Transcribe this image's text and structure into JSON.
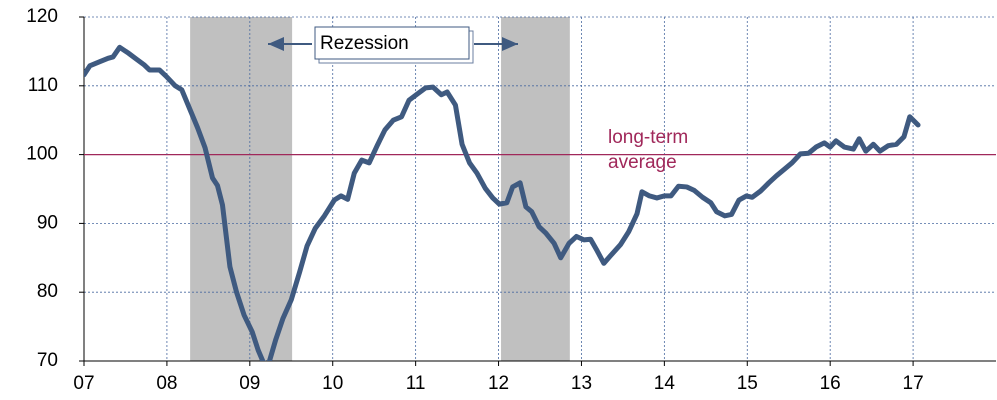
{
  "chart_data": {
    "type": "line",
    "x": [
      2007.0,
      2007.07,
      2007.19,
      2007.29,
      2007.35,
      2007.43,
      2007.53,
      2007.63,
      2007.73,
      2007.79,
      2007.91,
      2007.99,
      2008.1,
      2008.18,
      2008.28,
      2008.37,
      2008.46,
      2008.55,
      2008.61,
      2008.67,
      2008.76,
      2008.84,
      2008.93,
      2009.03,
      2009.1,
      2009.16,
      2009.22,
      2009.31,
      2009.4,
      2009.5,
      2009.6,
      2009.69,
      2009.79,
      2009.9,
      2010.02,
      2010.1,
      2010.18,
      2010.26,
      2010.35,
      2010.44,
      2010.54,
      2010.63,
      2010.73,
      2010.83,
      2010.92,
      2011.02,
      2011.12,
      2011.21,
      2011.31,
      2011.38,
      2011.48,
      2011.56,
      2011.65,
      2011.74,
      2011.84,
      2011.93,
      2012.01,
      2012.1,
      2012.17,
      2012.26,
      2012.33,
      2012.4,
      2012.49,
      2012.57,
      2012.67,
      2012.75,
      2012.85,
      2012.94,
      2013.03,
      2013.11,
      2013.19,
      2013.27,
      2013.35,
      2013.47,
      2013.57,
      2013.67,
      2013.73,
      2013.82,
      2013.91,
      2014.0,
      2014.08,
      2014.17,
      2014.27,
      2014.36,
      2014.46,
      2014.56,
      2014.63,
      2014.73,
      2014.81,
      2014.9,
      2014.99,
      2015.06,
      2015.16,
      2015.26,
      2015.35,
      2015.45,
      2015.54,
      2015.64,
      2015.74,
      2015.83,
      2015.93,
      2016.0,
      2016.07,
      2016.17,
      2016.28,
      2016.35,
      2016.43,
      2016.52,
      2016.6,
      2016.7,
      2016.8,
      2016.89,
      2016.96,
      2017.06
    ],
    "series": [
      {
        "color": "#3f5a80",
        "values": [
          111.6,
          112.9,
          113.5,
          114.0,
          114.2,
          115.6,
          114.8,
          113.9,
          113.0,
          112.3,
          112.3,
          111.4,
          110.0,
          109.4,
          106.5,
          103.9,
          101.0,
          96.6,
          95.5,
          92.7,
          83.7,
          80.0,
          76.7,
          74.2,
          71.6,
          69.9,
          69.3,
          73.0,
          76.2,
          78.9,
          82.9,
          86.7,
          89.3,
          91.1,
          93.4,
          94.0,
          93.5,
          97.3,
          99.2,
          98.8,
          101.4,
          103.6,
          105.0,
          105.5,
          107.9,
          108.8,
          109.7,
          109.8,
          108.7,
          109.1,
          107.2,
          101.5,
          98.8,
          97.3,
          95.1,
          93.7,
          92.8,
          93.0,
          95.3,
          95.9,
          92.4,
          91.7,
          89.5,
          88.6,
          87.1,
          85.0,
          87.1,
          88.1,
          87.6,
          87.7,
          86.0,
          84.2,
          85.3,
          86.9,
          88.8,
          91.4,
          94.6,
          94.0,
          93.7,
          94.0,
          94.0,
          95.4,
          95.3,
          94.8,
          93.8,
          93.0,
          91.7,
          91.1,
          91.3,
          93.4,
          94.0,
          93.8,
          94.7,
          95.9,
          96.9,
          97.9,
          98.8,
          100.1,
          100.2,
          101.1,
          101.7,
          101.1,
          102.0,
          101.1,
          100.8,
          102.3,
          100.5,
          101.5,
          100.5,
          101.3,
          101.5,
          102.6,
          105.5,
          104.3
        ]
      }
    ],
    "xlim": [
      2007,
      2018
    ],
    "xticks": [
      {
        "value": 2007,
        "label": "07"
      },
      {
        "value": 2008,
        "label": "08"
      },
      {
        "value": 2009,
        "label": "09"
      },
      {
        "value": 2010,
        "label": "10"
      },
      {
        "value": 2011,
        "label": "11"
      },
      {
        "value": 2012,
        "label": "12"
      },
      {
        "value": 2013,
        "label": "13"
      },
      {
        "value": 2014,
        "label": "14"
      },
      {
        "value": 2015,
        "label": "15"
      },
      {
        "value": 2016,
        "label": "16"
      },
      {
        "value": 2017,
        "label": "17"
      }
    ],
    "ylim": [
      70,
      120
    ],
    "yticks": [
      70,
      80,
      90,
      100,
      110,
      120
    ],
    "grid": true,
    "shaded_regions": [
      [
        2008.28,
        2009.51
      ],
      [
        2012.03,
        2012.86
      ]
    ],
    "shade_color": "#c0c0c0",
    "annotation": "Rezession",
    "reference_line": {
      "value": 100,
      "color": "#a0285a",
      "label_lines": [
        "long-term",
        "average"
      ]
    }
  }
}
